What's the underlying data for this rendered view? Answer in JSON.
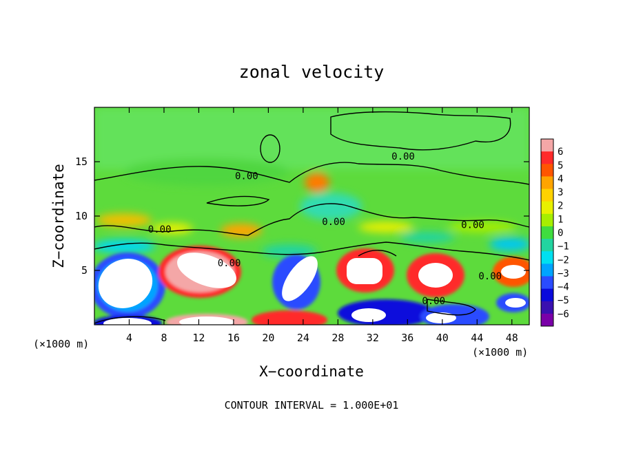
{
  "chart_data": {
    "type": "heatmap",
    "title": "zonal velocity",
    "xlabel": "X−coordinate",
    "ylabel": "Z−coordinate",
    "x_unit_left": "(×1000 m)",
    "x_unit_right": "(×1000 m)",
    "footer": "CONTOUR INTERVAL = 1.000E+01",
    "xlim": [
      0,
      50
    ],
    "ylim": [
      0,
      20
    ],
    "xticks": [
      4,
      8,
      12,
      16,
      20,
      24,
      28,
      32,
      36,
      40,
      44,
      48
    ],
    "yticks": [
      5,
      10,
      15
    ],
    "colorbar": {
      "ticks": [
        6,
        5,
        4,
        3,
        2,
        1,
        0,
        -1,
        -2,
        -3,
        -4,
        -5,
        -6
      ],
      "colors": [
        "#f4a7a7",
        "#ff2a2a",
        "#ff5500",
        "#ffa400",
        "#ffd200",
        "#e8f000",
        "#a6ee00",
        "#3fdc3f",
        "#22d4a0",
        "#00e0f0",
        "#00a4ff",
        "#2a4cff",
        "#0a0adc",
        "#3a10b0",
        "#7a00a8"
      ]
    },
    "contour_labels": [
      {
        "text": "0.00",
        "x": 17.5,
        "z": 13.7
      },
      {
        "text": "0.00",
        "x": 7.5,
        "z": 8.8
      },
      {
        "text": "0.00",
        "x": 15.5,
        "z": 5.7
      },
      {
        "text": "0.00",
        "x": 27.5,
        "z": 9.5
      },
      {
        "text": "0.00",
        "x": 35.5,
        "z": 15.5
      },
      {
        "text": "0.00",
        "x": 43.5,
        "z": 9.2
      },
      {
        "text": "0.00",
        "x": 45.5,
        "z": 4.5
      },
      {
        "text": "0.00",
        "x": 39.0,
        "z": 2.2
      }
    ]
  }
}
